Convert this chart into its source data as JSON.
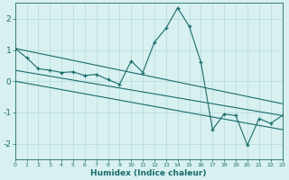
{
  "x": [
    0,
    1,
    2,
    3,
    4,
    5,
    6,
    7,
    8,
    9,
    10,
    11,
    12,
    13,
    14,
    15,
    16,
    17,
    18,
    19,
    20,
    21,
    22,
    23
  ],
  "y_main": [
    1.05,
    0.75,
    0.4,
    0.35,
    0.28,
    0.3,
    0.18,
    0.22,
    0.05,
    -0.1,
    0.65,
    0.28,
    1.25,
    1.7,
    2.35,
    1.75,
    0.6,
    -1.55,
    -1.05,
    -1.1,
    -2.05,
    -1.2,
    -1.35,
    -1.1
  ],
  "upper_line_x": [
    0,
    23
  ],
  "upper_line_y": [
    1.05,
    -0.72
  ],
  "mid_line_x": [
    0,
    23
  ],
  "mid_line_y": [
    0.35,
    -1.1
  ],
  "lower_line_x": [
    0,
    23
  ],
  "lower_line_y": [
    0.0,
    -1.55
  ],
  "color": "#1a6b6b",
  "bg_color": "#d8f0f0",
  "grid_color": "#b8dede",
  "xlabel": "Humidex (Indice chaleur)",
  "yticks": [
    -2,
    -1,
    0,
    1,
    2
  ],
  "xticks": [
    0,
    1,
    2,
    3,
    4,
    5,
    6,
    7,
    8,
    9,
    10,
    11,
    12,
    13,
    14,
    15,
    16,
    17,
    18,
    19,
    20,
    21,
    22,
    23
  ],
  "xlim": [
    0,
    23
  ],
  "ylim": [
    -2.5,
    2.5
  ]
}
